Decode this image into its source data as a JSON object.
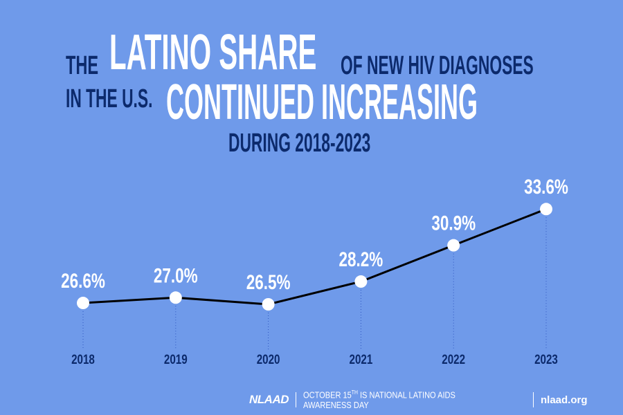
{
  "title": {
    "part1": "THE",
    "part2": "LATINO SHARE",
    "part3": "OF NEW HIV DIAGNOSES",
    "part4": "IN THE U.S.",
    "part5": "CONTINUED INCREASING",
    "part6": "DURING 2018-2023"
  },
  "chart_data": {
    "type": "line",
    "title": "The Latino share of new HIV diagnoses in the U.S. continued increasing during 2018-2023",
    "categories": [
      "2018",
      "2019",
      "2020",
      "2021",
      "2022",
      "2023"
    ],
    "values": [
      26.6,
      27.0,
      26.5,
      28.2,
      30.9,
      33.6
    ],
    "labels": [
      "26.6%",
      "27.0%",
      "26.5%",
      "28.2%",
      "30.9%",
      "33.6%"
    ],
    "xlabel": "",
    "ylabel": "",
    "grid": false,
    "colors": {
      "line": "#000000",
      "point": "#ffffff",
      "label": "#ffffff",
      "year": "#0c2a6c"
    }
  },
  "footer": {
    "logo": "NLAAD",
    "tagline_pre": "OCTOBER 15",
    "tagline_sup": "TH",
    "tagline_post": " IS NATIONAL LATINO AIDS AWARENESS DAY",
    "url": "nlaad.org"
  }
}
